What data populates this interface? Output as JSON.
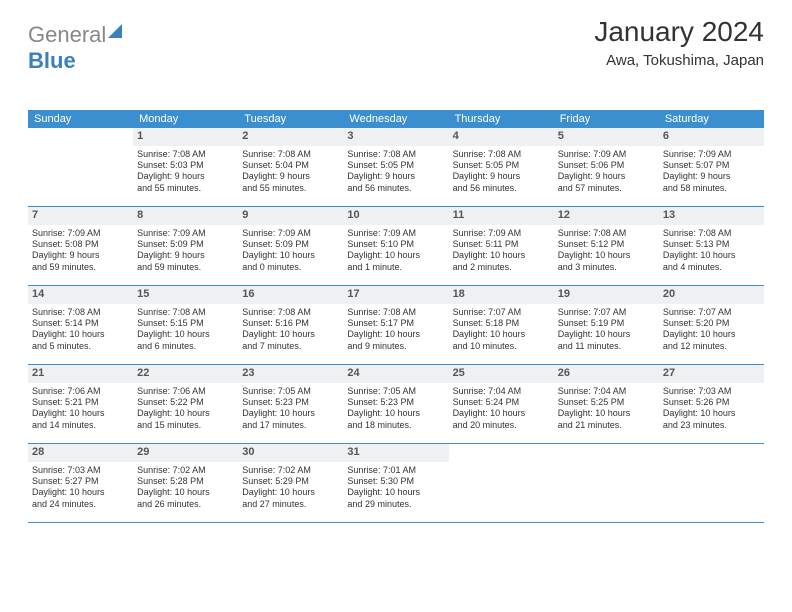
{
  "logo": {
    "part1": "General",
    "part2": "Blue"
  },
  "title": "January 2024",
  "subtitle": "Awa, Tokushima, Japan",
  "weekdays": [
    "Sunday",
    "Monday",
    "Tuesday",
    "Wednesday",
    "Thursday",
    "Friday",
    "Saturday"
  ],
  "colors": {
    "header_bg": "#3b8fcf",
    "header_text": "#ffffff",
    "daynum_bg": "#eef0f2",
    "border": "#3b8fcf",
    "text": "#333333",
    "logo_blue": "#3b7fbf"
  },
  "cell_font_size_pt": 7,
  "title_font_size_pt": 21,
  "days": [
    {
      "n": "",
      "sunrise": "",
      "sunset": "",
      "day1": "",
      "day2": "",
      "empty": true
    },
    {
      "n": "1",
      "sunrise": "Sunrise: 7:08 AM",
      "sunset": "Sunset: 5:03 PM",
      "day1": "Daylight: 9 hours",
      "day2": "and 55 minutes."
    },
    {
      "n": "2",
      "sunrise": "Sunrise: 7:08 AM",
      "sunset": "Sunset: 5:04 PM",
      "day1": "Daylight: 9 hours",
      "day2": "and 55 minutes."
    },
    {
      "n": "3",
      "sunrise": "Sunrise: 7:08 AM",
      "sunset": "Sunset: 5:05 PM",
      "day1": "Daylight: 9 hours",
      "day2": "and 56 minutes."
    },
    {
      "n": "4",
      "sunrise": "Sunrise: 7:08 AM",
      "sunset": "Sunset: 5:05 PM",
      "day1": "Daylight: 9 hours",
      "day2": "and 56 minutes."
    },
    {
      "n": "5",
      "sunrise": "Sunrise: 7:09 AM",
      "sunset": "Sunset: 5:06 PM",
      "day1": "Daylight: 9 hours",
      "day2": "and 57 minutes."
    },
    {
      "n": "6",
      "sunrise": "Sunrise: 7:09 AM",
      "sunset": "Sunset: 5:07 PM",
      "day1": "Daylight: 9 hours",
      "day2": "and 58 minutes."
    },
    {
      "n": "7",
      "sunrise": "Sunrise: 7:09 AM",
      "sunset": "Sunset: 5:08 PM",
      "day1": "Daylight: 9 hours",
      "day2": "and 59 minutes."
    },
    {
      "n": "8",
      "sunrise": "Sunrise: 7:09 AM",
      "sunset": "Sunset: 5:09 PM",
      "day1": "Daylight: 9 hours",
      "day2": "and 59 minutes."
    },
    {
      "n": "9",
      "sunrise": "Sunrise: 7:09 AM",
      "sunset": "Sunset: 5:09 PM",
      "day1": "Daylight: 10 hours",
      "day2": "and 0 minutes."
    },
    {
      "n": "10",
      "sunrise": "Sunrise: 7:09 AM",
      "sunset": "Sunset: 5:10 PM",
      "day1": "Daylight: 10 hours",
      "day2": "and 1 minute."
    },
    {
      "n": "11",
      "sunrise": "Sunrise: 7:09 AM",
      "sunset": "Sunset: 5:11 PM",
      "day1": "Daylight: 10 hours",
      "day2": "and 2 minutes."
    },
    {
      "n": "12",
      "sunrise": "Sunrise: 7:08 AM",
      "sunset": "Sunset: 5:12 PM",
      "day1": "Daylight: 10 hours",
      "day2": "and 3 minutes."
    },
    {
      "n": "13",
      "sunrise": "Sunrise: 7:08 AM",
      "sunset": "Sunset: 5:13 PM",
      "day1": "Daylight: 10 hours",
      "day2": "and 4 minutes."
    },
    {
      "n": "14",
      "sunrise": "Sunrise: 7:08 AM",
      "sunset": "Sunset: 5:14 PM",
      "day1": "Daylight: 10 hours",
      "day2": "and 5 minutes."
    },
    {
      "n": "15",
      "sunrise": "Sunrise: 7:08 AM",
      "sunset": "Sunset: 5:15 PM",
      "day1": "Daylight: 10 hours",
      "day2": "and 6 minutes."
    },
    {
      "n": "16",
      "sunrise": "Sunrise: 7:08 AM",
      "sunset": "Sunset: 5:16 PM",
      "day1": "Daylight: 10 hours",
      "day2": "and 7 minutes."
    },
    {
      "n": "17",
      "sunrise": "Sunrise: 7:08 AM",
      "sunset": "Sunset: 5:17 PM",
      "day1": "Daylight: 10 hours",
      "day2": "and 9 minutes."
    },
    {
      "n": "18",
      "sunrise": "Sunrise: 7:07 AM",
      "sunset": "Sunset: 5:18 PM",
      "day1": "Daylight: 10 hours",
      "day2": "and 10 minutes."
    },
    {
      "n": "19",
      "sunrise": "Sunrise: 7:07 AM",
      "sunset": "Sunset: 5:19 PM",
      "day1": "Daylight: 10 hours",
      "day2": "and 11 minutes."
    },
    {
      "n": "20",
      "sunrise": "Sunrise: 7:07 AM",
      "sunset": "Sunset: 5:20 PM",
      "day1": "Daylight: 10 hours",
      "day2": "and 12 minutes."
    },
    {
      "n": "21",
      "sunrise": "Sunrise: 7:06 AM",
      "sunset": "Sunset: 5:21 PM",
      "day1": "Daylight: 10 hours",
      "day2": "and 14 minutes."
    },
    {
      "n": "22",
      "sunrise": "Sunrise: 7:06 AM",
      "sunset": "Sunset: 5:22 PM",
      "day1": "Daylight: 10 hours",
      "day2": "and 15 minutes."
    },
    {
      "n": "23",
      "sunrise": "Sunrise: 7:05 AM",
      "sunset": "Sunset: 5:23 PM",
      "day1": "Daylight: 10 hours",
      "day2": "and 17 minutes."
    },
    {
      "n": "24",
      "sunrise": "Sunrise: 7:05 AM",
      "sunset": "Sunset: 5:23 PM",
      "day1": "Daylight: 10 hours",
      "day2": "and 18 minutes."
    },
    {
      "n": "25",
      "sunrise": "Sunrise: 7:04 AM",
      "sunset": "Sunset: 5:24 PM",
      "day1": "Daylight: 10 hours",
      "day2": "and 20 minutes."
    },
    {
      "n": "26",
      "sunrise": "Sunrise: 7:04 AM",
      "sunset": "Sunset: 5:25 PM",
      "day1": "Daylight: 10 hours",
      "day2": "and 21 minutes."
    },
    {
      "n": "27",
      "sunrise": "Sunrise: 7:03 AM",
      "sunset": "Sunset: 5:26 PM",
      "day1": "Daylight: 10 hours",
      "day2": "and 23 minutes."
    },
    {
      "n": "28",
      "sunrise": "Sunrise: 7:03 AM",
      "sunset": "Sunset: 5:27 PM",
      "day1": "Daylight: 10 hours",
      "day2": "and 24 minutes."
    },
    {
      "n": "29",
      "sunrise": "Sunrise: 7:02 AM",
      "sunset": "Sunset: 5:28 PM",
      "day1": "Daylight: 10 hours",
      "day2": "and 26 minutes."
    },
    {
      "n": "30",
      "sunrise": "Sunrise: 7:02 AM",
      "sunset": "Sunset: 5:29 PM",
      "day1": "Daylight: 10 hours",
      "day2": "and 27 minutes."
    },
    {
      "n": "31",
      "sunrise": "Sunrise: 7:01 AM",
      "sunset": "Sunset: 5:30 PM",
      "day1": "Daylight: 10 hours",
      "day2": "and 29 minutes."
    },
    {
      "n": "",
      "sunrise": "",
      "sunset": "",
      "day1": "",
      "day2": "",
      "empty": true
    },
    {
      "n": "",
      "sunrise": "",
      "sunset": "",
      "day1": "",
      "day2": "",
      "empty": true
    },
    {
      "n": "",
      "sunrise": "",
      "sunset": "",
      "day1": "",
      "day2": "",
      "empty": true
    }
  ]
}
